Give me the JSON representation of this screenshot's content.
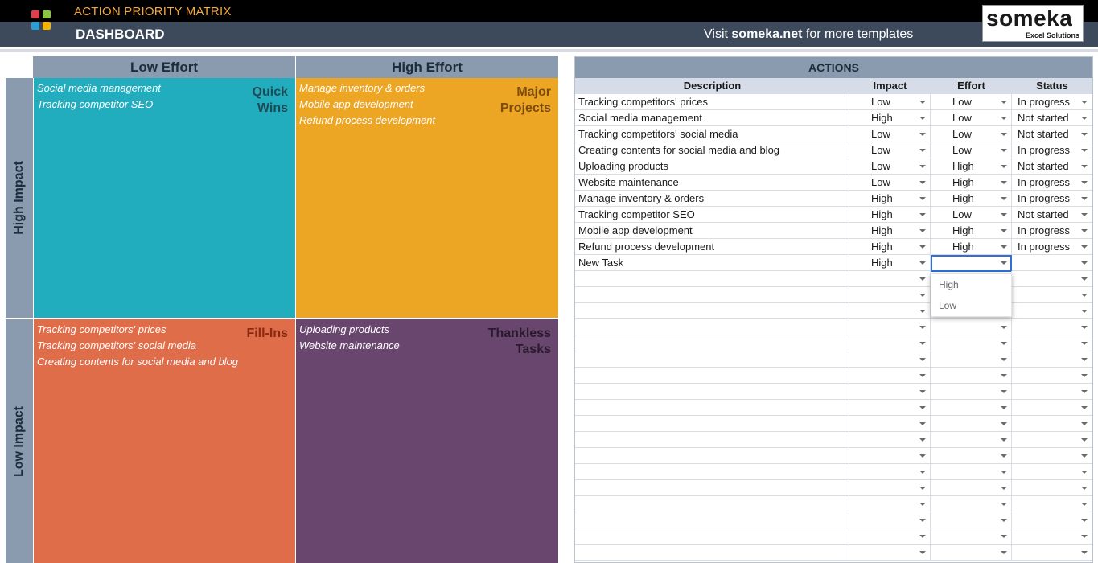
{
  "header": {
    "app_title": "ACTION PRIORITY MATRIX",
    "page_title": "DASHBOARD",
    "visit_prefix": "Visit ",
    "visit_link": "someka.net",
    "visit_suffix": " for more templates",
    "brand_name": "someka",
    "brand_sub": "Excel Solutions",
    "logo_colors": [
      "#e23d4b",
      "#8cc63f",
      "#2a9fd6",
      "#f5b400"
    ]
  },
  "matrix": {
    "col_low_effort": "Low Effort",
    "col_high_effort": "High Effort",
    "row_high_impact": "High Impact",
    "row_low_impact": "Low Impact",
    "quadrants": {
      "quick_wins": {
        "label": "Quick\nWins",
        "color": "#21adbd",
        "label_color": "#1f4a55",
        "items": [
          "Social media management",
          "Tracking competitor SEO"
        ]
      },
      "major_projects": {
        "label": "Major\nProjects",
        "color": "#eda624",
        "label_color": "#7a4b12",
        "items": [
          "Manage inventory & orders",
          "Mobile app development",
          "Refund process development"
        ]
      },
      "fill_ins": {
        "label": "Fill-Ins",
        "color": "#e06d4a",
        "label_color": "#8a2a12",
        "items": [
          "Tracking competitors' prices",
          "Tracking competitors' social media",
          "Creating contents for social media and blog"
        ]
      },
      "thankless_tasks": {
        "label": "Thankless\nTasks",
        "color": "#68466d",
        "label_color": "#2a1a2e",
        "items": [
          "Uploading products",
          "Website maintenance"
        ]
      }
    }
  },
  "actions": {
    "title": "ACTIONS",
    "columns": {
      "description": "Description",
      "impact": "Impact",
      "effort": "Effort",
      "status": "Status"
    },
    "rows": [
      {
        "description": "Tracking competitors' prices",
        "impact": "Low",
        "effort": "Low",
        "status": "In progress"
      },
      {
        "description": "Social media management",
        "impact": "High",
        "effort": "Low",
        "status": "Not started"
      },
      {
        "description": "Tracking competitors' social media",
        "impact": "Low",
        "effort": "Low",
        "status": "Not started"
      },
      {
        "description": "Creating contents for social media and blog",
        "impact": "Low",
        "effort": "Low",
        "status": "In progress"
      },
      {
        "description": "Uploading products",
        "impact": "Low",
        "effort": "High",
        "status": "Not started"
      },
      {
        "description": "Website maintenance",
        "impact": "Low",
        "effort": "High",
        "status": "In progress"
      },
      {
        "description": "Manage inventory & orders",
        "impact": "High",
        "effort": "High",
        "status": "In progress"
      },
      {
        "description": "Tracking competitor SEO",
        "impact": "High",
        "effort": "Low",
        "status": "Not started"
      },
      {
        "description": "Mobile app development",
        "impact": "High",
        "effort": "High",
        "status": "In progress"
      },
      {
        "description": "Refund process development",
        "impact": "High",
        "effort": "High",
        "status": "In progress"
      },
      {
        "description": "New Task",
        "impact": "High",
        "effort": "",
        "status": ""
      }
    ],
    "empty_row_count": 18,
    "effort_dropdown_options": [
      "High",
      "Low"
    ]
  }
}
